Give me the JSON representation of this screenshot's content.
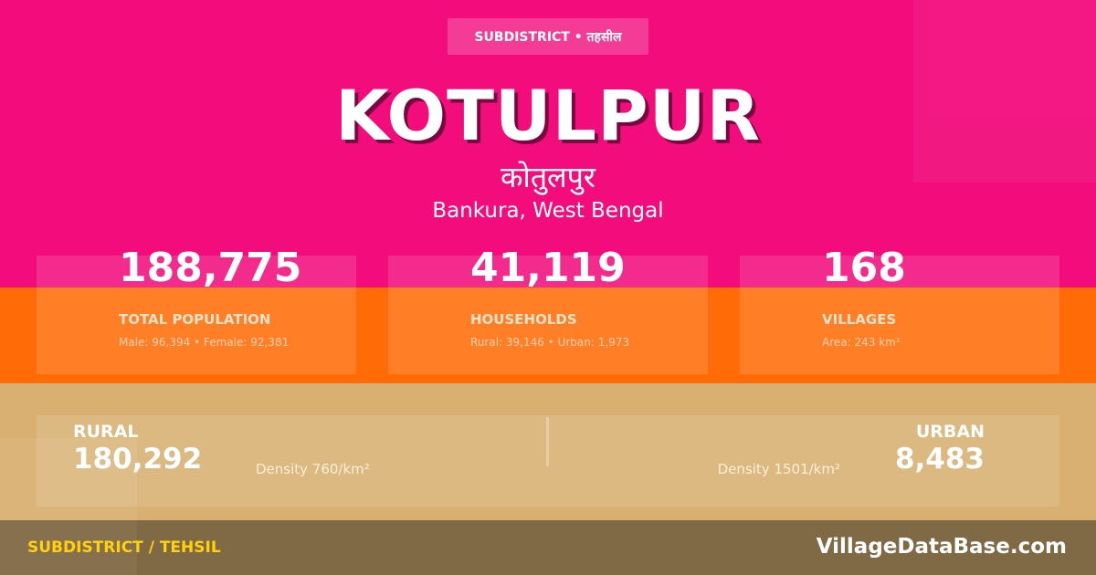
{
  "badge": "SUBDISTRICT • तहसील",
  "title": "KOTULPUR",
  "title_hindi": "कोतुलपुर",
  "location": "Bankura, West Bengal",
  "stats": [
    {
      "value": "188,775",
      "label": "TOTAL POPULATION",
      "sub": "Male: 96,394 • Female: 92,381"
    },
    {
      "value": "41,119",
      "label": "HOUSEHOLDS",
      "sub": "Rural: 39,146 • Urban: 1,973"
    },
    {
      "value": "168",
      "label": "VILLAGES",
      "sub": "Area: 243 km²"
    }
  ],
  "rural": {
    "label": "RURAL",
    "value": "180,292",
    "density": "Density 760/km²"
  },
  "urban": {
    "label": "URBAN",
    "value": "8,483",
    "density": "Density 1501/km²"
  },
  "footer": {
    "left": "SUBDISTRICT / TEHSIL",
    "right": "VillageDataBase.com"
  },
  "colors": {
    "pink": "#f20c7c",
    "orange": "#ff6b06",
    "tan": "#d9b071",
    "footer": "#806945",
    "footer_accent": "#ffd20a"
  }
}
